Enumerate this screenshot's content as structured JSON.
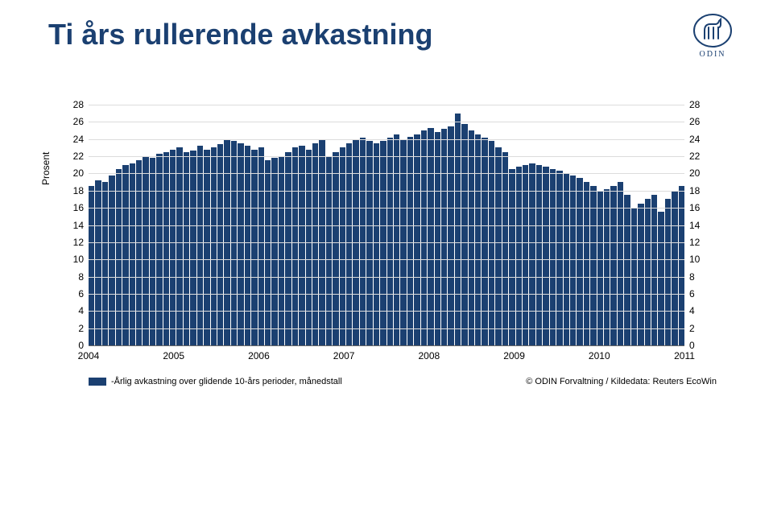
{
  "title": "Ti års rullerende avkastning",
  "logo_text": "ODIN",
  "chart": {
    "type": "bar",
    "y_axis_label": "Prosent",
    "y_ticks": [
      0,
      2,
      4,
      6,
      8,
      10,
      12,
      14,
      16,
      18,
      20,
      22,
      24,
      26,
      28
    ],
    "ylim": [
      0,
      28
    ],
    "x_years": [
      2004,
      2005,
      2006,
      2007,
      2008,
      2009,
      2010,
      2011
    ],
    "values": [
      18.5,
      19.2,
      19.0,
      19.8,
      20.5,
      21.0,
      21.2,
      21.5,
      22.0,
      21.8,
      22.3,
      22.5,
      22.8,
      23.0,
      22.5,
      22.7,
      23.2,
      22.8,
      23.0,
      23.4,
      24.0,
      23.8,
      23.5,
      23.2,
      22.8,
      23.0,
      21.5,
      21.8,
      22.0,
      22.5,
      23.0,
      23.2,
      22.8,
      23.5,
      24.0,
      22.0,
      22.5,
      23.0,
      23.5,
      24.0,
      24.2,
      23.8,
      23.5,
      23.8,
      24.2,
      24.5,
      24.0,
      24.3,
      24.5,
      25.0,
      25.3,
      24.8,
      25.2,
      25.5,
      27.0,
      25.8,
      25.0,
      24.5,
      24.2,
      23.8,
      23.0,
      22.5,
      20.5,
      20.8,
      21.0,
      21.2,
      21.0,
      20.8,
      20.5,
      20.3,
      20.0,
      19.8,
      19.5,
      19.0,
      18.5,
      18.0,
      18.2,
      18.5,
      19.0,
      17.5,
      16.0,
      16.5,
      17.0,
      17.5,
      15.5,
      17.0,
      18.0,
      18.5
    ],
    "bar_color": "#1b4071",
    "background_color": "#ffffff",
    "grid_color": "#dcdcdc",
    "axis_font_size": 12
  },
  "legend_label": "-Årlig avkastning over glidende 10-års perioder, månedstall",
  "source": "© ODIN Forvaltning / Kildedata: Reuters EcoWin"
}
